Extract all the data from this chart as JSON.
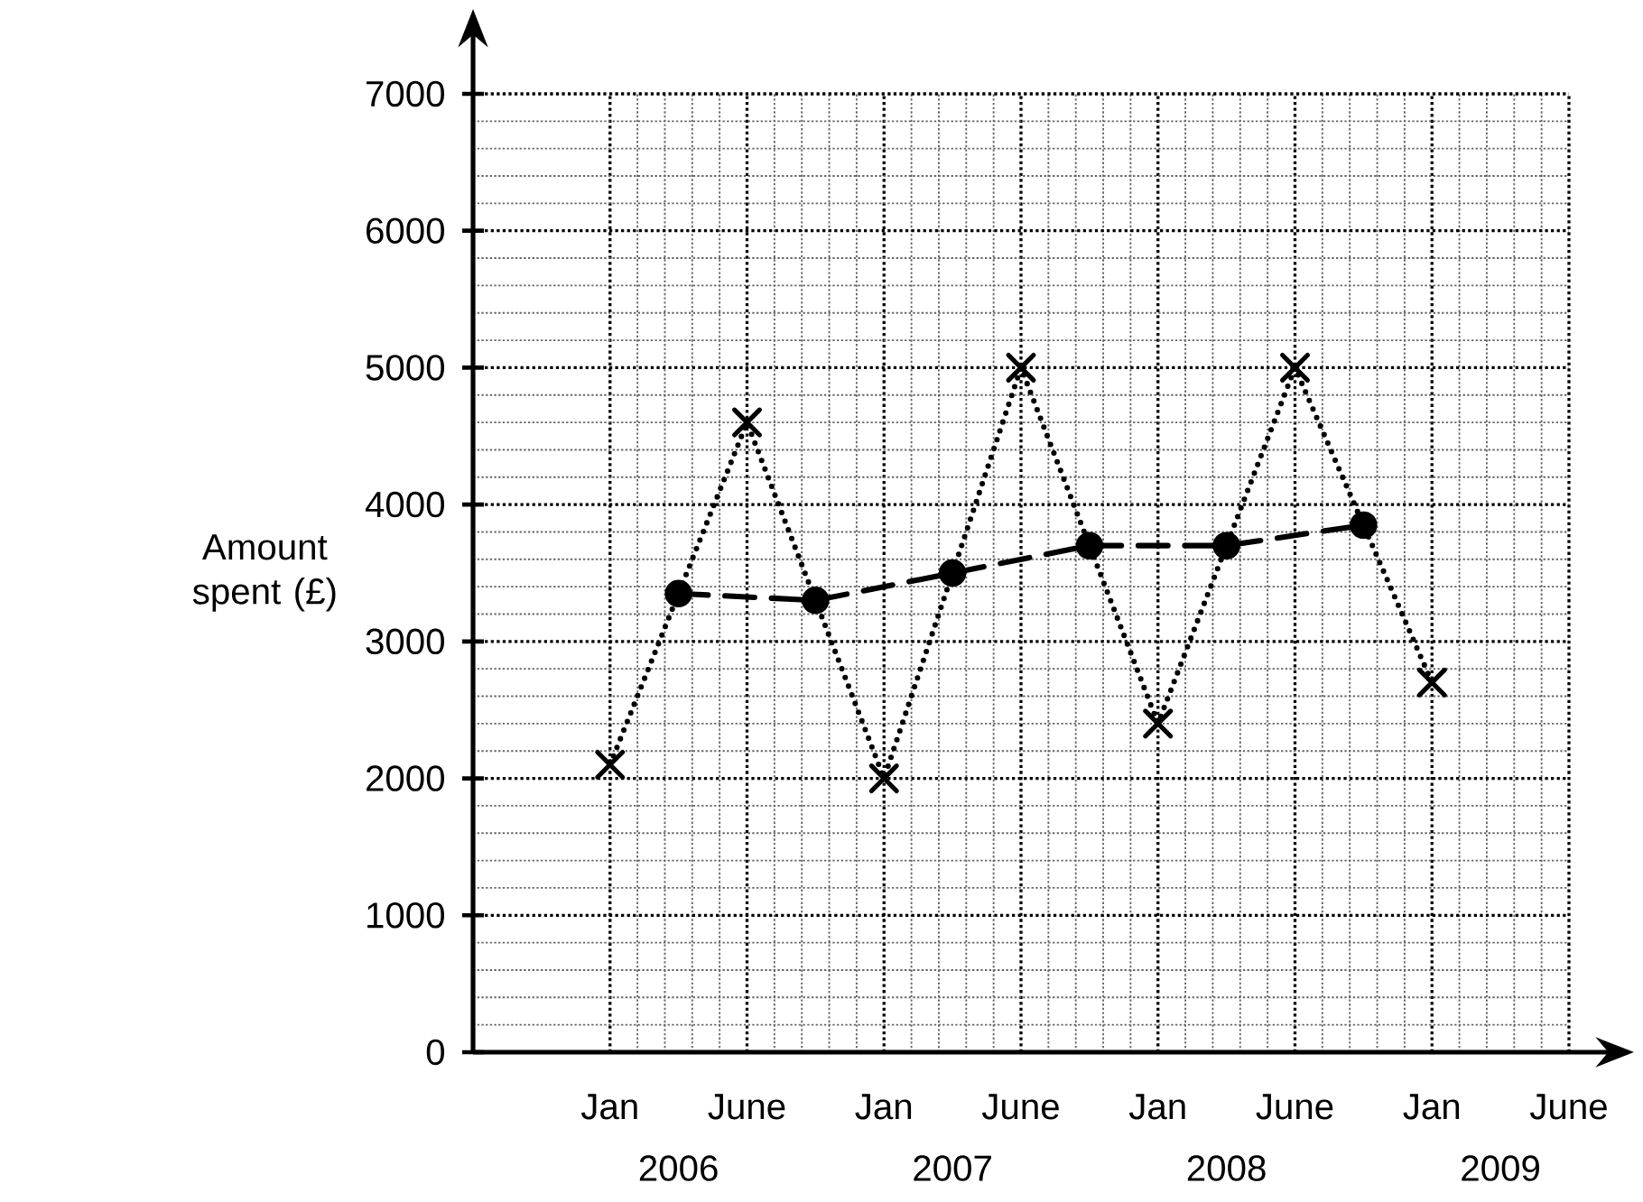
{
  "chart_data": {
    "type": "line",
    "ylabel": "Amount spent (£)",
    "categories": [
      "Jan",
      null,
      "June",
      null,
      "Jan",
      null,
      "June",
      null,
      "Jan",
      null,
      "June",
      null,
      "Jan",
      null,
      "June"
    ],
    "ylim": [
      0,
      7000
    ],
    "yticks": [
      0,
      1000,
      2000,
      3000,
      4000,
      5000,
      6000,
      7000
    ],
    "annotations": [
      "2006",
      "2007",
      "2008",
      "2009"
    ],
    "grid": true,
    "series": [
      {
        "color": "#000000",
        "marker": "cross",
        "line_style": "dotted",
        "values": [
          2100,
          null,
          4600,
          null,
          2000,
          null,
          5000,
          null,
          2400,
          null,
          5000,
          null,
          2700,
          null,
          null
        ]
      },
      {
        "color": "#000000",
        "marker": "circle",
        "line_style": "dashed",
        "values": [
          null,
          3350,
          null,
          3300,
          null,
          3500,
          null,
          3700,
          null,
          3700,
          null,
          3850,
          null,
          null,
          null
        ]
      }
    ]
  }
}
